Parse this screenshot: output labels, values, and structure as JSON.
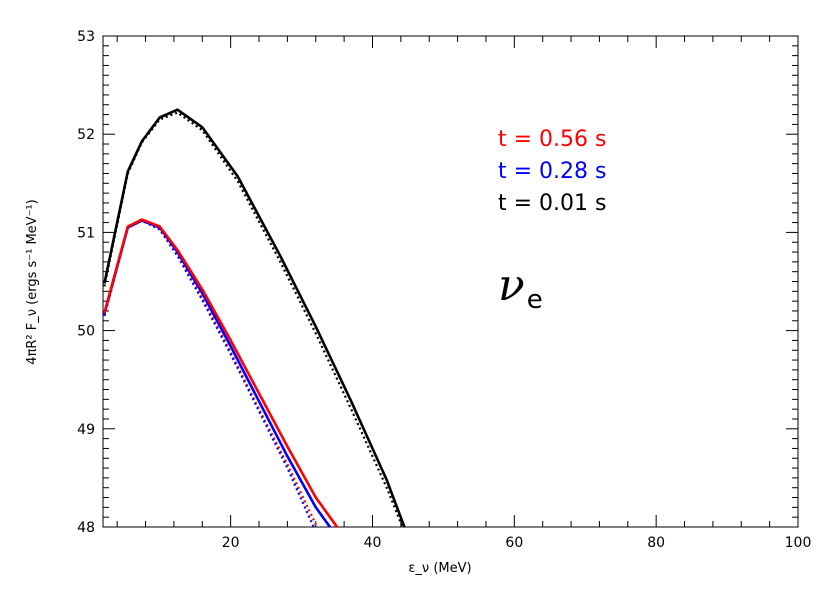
{
  "chart_data": {
    "type": "line",
    "xlabel": "ε_ν (MeV)",
    "ylabel": "4πR² F_ν (ergs s⁻¹ MeV⁻¹)",
    "xlim": [
      2,
      100
    ],
    "ylim": [
      48,
      53
    ],
    "xticks": [
      20,
      40,
      60,
      80,
      100
    ],
    "yticks": [
      48,
      49,
      50,
      51,
      52,
      53
    ],
    "xtick_labels": [
      "20",
      "40",
      "60",
      "80",
      "100"
    ],
    "ytick_labels": [
      "48",
      "49",
      "50",
      "51",
      "52",
      "53"
    ],
    "grid": false,
    "annotation": {
      "symbol": "ν",
      "subscript": "e"
    },
    "legend_position": "top-right",
    "legend": [
      {
        "label": "t  =  0.56  s",
        "color": "#ff0000"
      },
      {
        "label": "t  =  0.28  s",
        "color": "#0000ff"
      },
      {
        "label": "t  =  0.01  s",
        "color": "#000000"
      }
    ],
    "series": [
      {
        "color": "#000000",
        "style": "dotted",
        "x": [
          2.2,
          5.5,
          7.5,
          10,
          12.5,
          16,
          21,
          27,
          32,
          37,
          42,
          44.5
        ],
        "y": [
          50.45,
          51.6,
          51.92,
          52.15,
          52.22,
          52.04,
          51.52,
          50.7,
          49.97,
          49.2,
          48.4,
          47.95
        ]
      },
      {
        "color": "#000000",
        "style": "solid",
        "x": [
          2.2,
          5.5,
          7.5,
          10,
          12.5,
          16,
          21,
          27,
          32,
          37,
          42,
          44.5
        ],
        "y": [
          50.48,
          51.62,
          51.93,
          52.17,
          52.25,
          52.07,
          51.57,
          50.76,
          50.04,
          49.28,
          48.48,
          48.0
        ]
      },
      {
        "color": "#ff0000",
        "style": "dotted",
        "x": [
          2.2,
          5.5,
          7.5,
          10,
          12.5,
          16,
          20,
          24,
          28,
          32.5
        ],
        "y": [
          50.15,
          51.05,
          51.12,
          51.04,
          50.78,
          50.33,
          49.78,
          49.2,
          48.64,
          47.95
        ]
      },
      {
        "color": "#0000ff",
        "style": "dotted",
        "x": [
          2.2,
          5.5,
          7.5,
          10,
          12.5,
          16,
          20,
          24,
          28,
          32
        ],
        "y": [
          50.15,
          51.05,
          51.12,
          51.03,
          50.76,
          50.31,
          49.76,
          49.18,
          48.6,
          47.95
        ]
      },
      {
        "color": "#0000ff",
        "style": "solid",
        "x": [
          2.2,
          5.5,
          7.5,
          10,
          12.5,
          16,
          20,
          24,
          28,
          32,
          34.5
        ],
        "y": [
          50.17,
          51.05,
          51.12,
          51.05,
          50.8,
          50.38,
          49.84,
          49.28,
          48.72,
          48.2,
          47.95
        ]
      },
      {
        "color": "#ff0000",
        "style": "solid",
        "x": [
          2.2,
          5.5,
          7.5,
          10,
          12.5,
          16,
          20,
          24,
          28,
          32,
          35.5
        ],
        "y": [
          50.18,
          51.06,
          51.13,
          51.06,
          50.82,
          50.42,
          49.9,
          49.36,
          48.82,
          48.3,
          47.95
        ]
      }
    ]
  }
}
